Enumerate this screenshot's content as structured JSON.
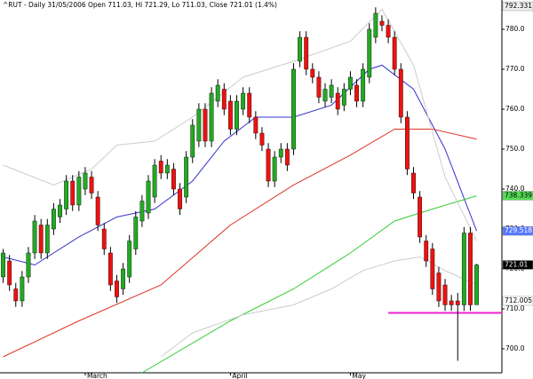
{
  "chart_data": {
    "type": "candlestick",
    "title": "^RUT - Daily 31/05/2006 Open 711.03, Hi 721.29, Lo 711.03, Close 721.01 (1.4%)",
    "open": [
      718,
      722,
      715,
      712,
      718,
      724,
      731,
      724,
      730,
      733,
      735,
      742,
      736,
      740,
      743,
      738,
      730,
      724,
      717,
      715,
      718,
      725,
      732,
      734,
      738,
      747,
      744,
      745,
      740,
      738,
      748,
      752,
      760,
      752,
      762,
      765,
      762,
      755,
      760,
      764,
      758,
      754,
      750,
      742,
      748,
      750,
      750,
      772,
      778,
      770,
      768,
      762,
      763,
      764,
      761,
      765,
      766,
      762,
      768,
      778,
      782,
      781,
      778,
      770,
      758,
      744,
      738,
      727,
      725,
      719,
      716,
      712,
      712,
      711,
      729,
      711.03
    ],
    "high": [
      725,
      723.5,
      716.5,
      719.5,
      725.5,
      733.5,
      732.5,
      732.5,
      736.5,
      737.5,
      743.5,
      743.5,
      744.5,
      745.5,
      744.5,
      739.5,
      731.5,
      725.5,
      718.5,
      721.5,
      728.5,
      734.5,
      738.5,
      743.5,
      747.5,
      748.5,
      747.5,
      746.5,
      741.5,
      749.5,
      757.5,
      761.5,
      761.5,
      765.5,
      767.5,
      766.5,
      763.5,
      763.5,
      765.5,
      765.5,
      759.5,
      755.5,
      751.5,
      749.5,
      751.5,
      751.5,
      771.5,
      779.5,
      779.5,
      771.5,
      769.5,
      766.5,
      767.5,
      765.5,
      766.5,
      769.5,
      767.5,
      771.5,
      781.5,
      785.5,
      783.5,
      782.5,
      779.5,
      771.5,
      759.5,
      745.5,
      739.5,
      728.5,
      726.5,
      720.5,
      717.5,
      713.5,
      714,
      730.5,
      730.5,
      721.29
    ],
    "low": [
      716.5,
      714.5,
      710.5,
      710.5,
      716.5,
      722.5,
      722.5,
      722.5,
      728.5,
      731.5,
      733.5,
      734.5,
      734.5,
      738.5,
      737.5,
      729.5,
      723.5,
      714.5,
      711.5,
      713.5,
      716.5,
      723.5,
      730.5,
      732.5,
      736.5,
      742.5,
      742.5,
      738.5,
      733.5,
      736.5,
      746.5,
      750.5,
      750.5,
      750.5,
      760.5,
      758.5,
      753.5,
      753.5,
      758.5,
      756.5,
      752.5,
      749.5,
      740.5,
      740.5,
      746.5,
      744.5,
      748.5,
      770.5,
      768.5,
      766.5,
      761.5,
      760.5,
      761.5,
      758.5,
      759.5,
      763.5,
      760.5,
      760.5,
      766.5,
      776.5,
      779.5,
      776.5,
      768.5,
      756.5,
      743.5,
      737.5,
      726.5,
      720.5,
      713.5,
      710.5,
      709.5,
      709.5,
      697,
      709.5,
      709.5,
      711.03
    ],
    "close": [
      724,
      716,
      712,
      718,
      724,
      732,
      724,
      731,
      735,
      736,
      742,
      736,
      743,
      744,
      739,
      731,
      725,
      716,
      713,
      720,
      727,
      733,
      737,
      742,
      746,
      744,
      746,
      740,
      735,
      748,
      756,
      760,
      752,
      764,
      766,
      760,
      755,
      762,
      764,
      758,
      754,
      751,
      742,
      748,
      750,
      746,
      770,
      778,
      770,
      768,
      763,
      765,
      766,
      760,
      765,
      768,
      762,
      770,
      780,
      784,
      781,
      778,
      770,
      758,
      745,
      739,
      728,
      722,
      715,
      712,
      711,
      711,
      711,
      729,
      711,
      721.01
    ],
    "up_color": "#22aa22",
    "down_color": "#ee1111",
    "overlays": [
      {
        "color": "#3333cc",
        "x": [
          0,
          5,
          12,
          18,
          24,
          30,
          35,
          40,
          46,
          52,
          58,
          60,
          65,
          70,
          75
        ],
        "values": [
          723,
          721,
          728,
          733,
          735,
          742,
          752,
          758,
          758,
          761,
          770,
          771,
          765,
          750,
          729.5
        ]
      },
      {
        "color": "#dd3322",
        "x": [
          0,
          12,
          25,
          36,
          46,
          55,
          62,
          68,
          75
        ],
        "values": [
          698,
          707,
          716,
          731,
          741,
          748.5,
          755,
          755,
          752.5
        ]
      },
      {
        "color": "#33cc33",
        "x": [
          22,
          36,
          46,
          55,
          62,
          68,
          75
        ],
        "values": [
          694,
          707,
          715,
          724,
          732,
          735,
          738.3
        ]
      },
      {
        "color": "#cccccc",
        "x": [
          0,
          8,
          14,
          18,
          24,
          30,
          38,
          46,
          55,
          60,
          65,
          70,
          75
        ],
        "values": [
          746,
          741,
          745,
          751,
          752,
          758,
          768,
          772,
          777,
          785,
          771,
          743,
          727
        ]
      },
      {
        "color": "#cccccc",
        "x": [
          25,
          30,
          38,
          46,
          52,
          57,
          62,
          66,
          70,
          75
        ],
        "values": [
          698,
          704,
          708.5,
          711,
          715,
          719.6,
          722,
          723,
          719.6,
          716
        ]
      }
    ],
    "support_line": {
      "color": "#ee22cc",
      "value": 709,
      "x": [
        61,
        79
      ]
    },
    "price_labels": [
      {
        "value": 792.331,
        "label": "792.331",
        "color": "#eeeeee",
        "text_color": "#000000"
      },
      {
        "value": 738.339,
        "label": "738.339",
        "color": "#55dd55",
        "text_color": "#000000"
      },
      {
        "value": 729.518,
        "label": "729.518",
        "color": "#5577ff",
        "text_color": "#ffffff"
      },
      {
        "value": 721.01,
        "label": "721.01",
        "color": "#000000",
        "text_color": "#ffffff"
      },
      {
        "value": 712.005,
        "label": "712.005",
        "color": "#ffffff",
        "text_color": "#000000"
      }
    ],
    "xlim": [
      -0.5,
      79
    ],
    "xticks": [
      {
        "value": 13,
        "label": "March"
      },
      {
        "value": 36,
        "label": "April"
      },
      {
        "value": 55,
        "label": "May"
      }
    ],
    "ylim": [
      694,
      787.33
    ],
    "yticks": [
      {
        "value": 780,
        "label": "780.0"
      },
      {
        "value": 770,
        "label": "770.0"
      },
      {
        "value": 760,
        "label": "760.0"
      },
      {
        "value": 750,
        "label": "750.0"
      },
      {
        "value": 740,
        "label": "740.0"
      },
      {
        "value": 730,
        "label": "730.0"
      },
      {
        "value": 720,
        "label": "720.0"
      },
      {
        "value": 710,
        "label": "710.0"
      },
      {
        "value": 700,
        "label": "700.0"
      }
    ]
  }
}
